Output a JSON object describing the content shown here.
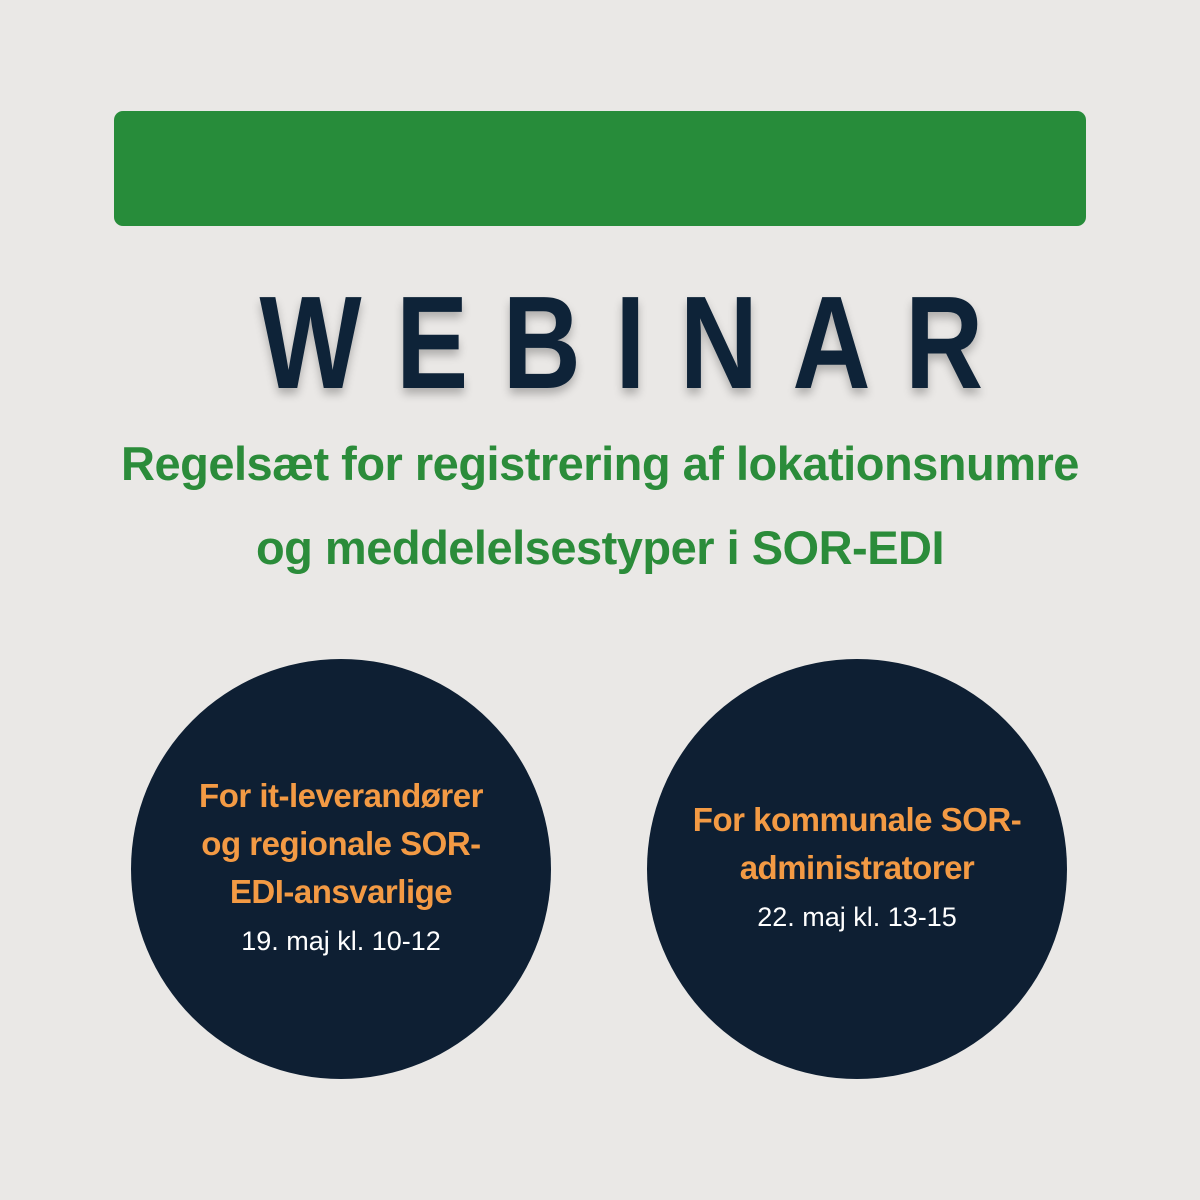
{
  "colors": {
    "background": "#eae8e6",
    "accent_green": "#278c3a",
    "navy": "#0e1f33",
    "orange": "#f39a44"
  },
  "header": {
    "title": "WEBINAR",
    "subtitle_lines": [
      "Regelsæt for registrering af lokationsnumre",
      "og meddelelsestyper i SOR-EDI"
    ]
  },
  "sessions": [
    {
      "audience_lines": [
        "For it-leverandører",
        "og regionale SOR-",
        "EDI-ansvarlige"
      ],
      "date": "19. maj kl. 10-12"
    },
    {
      "audience_lines": [
        "For kommunale SOR-",
        "administratorer"
      ],
      "date": "22. maj kl. 13-15"
    }
  ]
}
